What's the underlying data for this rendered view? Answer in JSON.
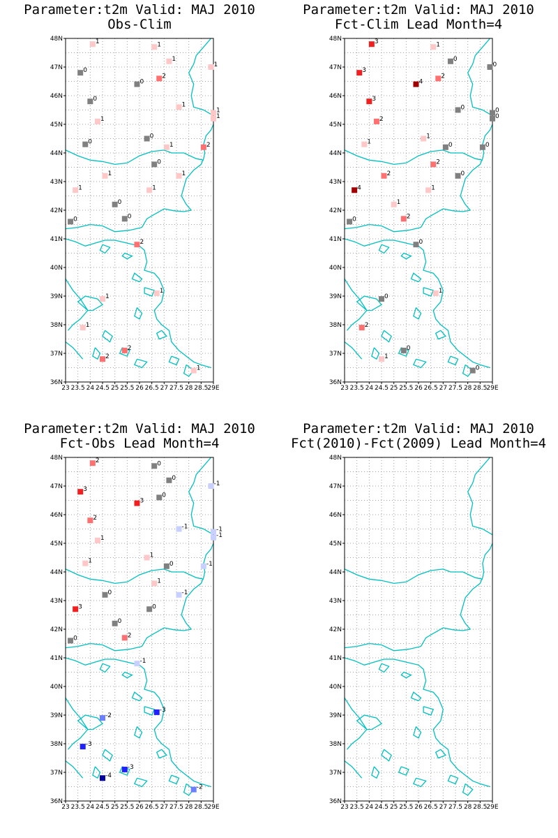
{
  "axes": {
    "lat_labels": [
      "48N",
      "47N",
      "46N",
      "45N",
      "44N",
      "43N",
      "42N",
      "41N",
      "40N",
      "39N",
      "38N",
      "37N",
      "36N"
    ],
    "lon_labels": [
      "23",
      "23.5",
      "24",
      "24.5",
      "25",
      "25.5",
      "26",
      "26.5",
      "27",
      "27.5",
      "28",
      "28.5",
      "29E"
    ],
    "lat_range": [
      36,
      48
    ],
    "lon_range": [
      23,
      29
    ]
  },
  "colors": {
    "coast": "#00c0c0",
    "grid": "#a0a0a0",
    "scale": {
      "-4": "#0000a0",
      "-3": "#2020ff",
      "-2": "#6c80ff",
      "-1": "#c8d0ff",
      "0": "#808080",
      "1": "#ffc8c8",
      "2": "#ff7070",
      "3": "#f02020",
      "4": "#a00000"
    }
  },
  "panels": [
    {
      "title_line1": "Parameter:t2m Valid: MAJ 2010",
      "title_line2": "Obs-Clim",
      "stations": [
        {
          "lon": 24.1,
          "lat": 47.8,
          "v": "1"
        },
        {
          "lon": 26.6,
          "lat": 47.7,
          "v": "1"
        },
        {
          "lon": 27.2,
          "lat": 47.2,
          "v": "1"
        },
        {
          "lon": 28.9,
          "lat": 47.0,
          "v": "1"
        },
        {
          "lon": 23.6,
          "lat": 46.8,
          "v": "0"
        },
        {
          "lon": 26.8,
          "lat": 46.6,
          "v": "2"
        },
        {
          "lon": 25.9,
          "lat": 46.4,
          "v": "0"
        },
        {
          "lon": 24.0,
          "lat": 45.8,
          "v": "0"
        },
        {
          "lon": 27.6,
          "lat": 45.6,
          "v": "1"
        },
        {
          "lon": 29.0,
          "lat": 45.4,
          "v": "1"
        },
        {
          "lon": 29.0,
          "lat": 45.2,
          "v": "1"
        },
        {
          "lon": 24.3,
          "lat": 45.1,
          "v": "1"
        },
        {
          "lon": 26.3,
          "lat": 44.5,
          "v": "0"
        },
        {
          "lon": 23.8,
          "lat": 44.3,
          "v": "0"
        },
        {
          "lon": 27.1,
          "lat": 44.2,
          "v": "1"
        },
        {
          "lon": 28.6,
          "lat": 44.2,
          "v": "2"
        },
        {
          "lon": 26.6,
          "lat": 43.6,
          "v": "0"
        },
        {
          "lon": 24.6,
          "lat": 43.2,
          "v": "1"
        },
        {
          "lon": 27.6,
          "lat": 43.2,
          "v": "1"
        },
        {
          "lon": 23.4,
          "lat": 42.7,
          "v": "1"
        },
        {
          "lon": 26.4,
          "lat": 42.7,
          "v": "1"
        },
        {
          "lon": 25.0,
          "lat": 42.2,
          "v": "0"
        },
        {
          "lon": 25.4,
          "lat": 41.7,
          "v": "0"
        },
        {
          "lon": 23.2,
          "lat": 41.6,
          "v": "0"
        },
        {
          "lon": 25.9,
          "lat": 40.8,
          "v": "2"
        },
        {
          "lon": 24.5,
          "lat": 38.9,
          "v": "1"
        },
        {
          "lon": 26.7,
          "lat": 39.1,
          "v": "1"
        },
        {
          "lon": 23.7,
          "lat": 37.9,
          "v": "1"
        },
        {
          "lon": 25.4,
          "lat": 37.1,
          "v": "2"
        },
        {
          "lon": 24.5,
          "lat": 36.8,
          "v": "2"
        },
        {
          "lon": 28.2,
          "lat": 36.4,
          "v": "1"
        }
      ]
    },
    {
      "title_line1": "Parameter:t2m Valid: MAJ 2010",
      "title_line2": "Fct-Clim Lead Month=4",
      "stations": [
        {
          "lon": 24.1,
          "lat": 47.8,
          "v": "3"
        },
        {
          "lon": 26.6,
          "lat": 47.7,
          "v": "1"
        },
        {
          "lon": 27.3,
          "lat": 47.2,
          "v": "0"
        },
        {
          "lon": 28.9,
          "lat": 47.0,
          "v": "0"
        },
        {
          "lon": 23.6,
          "lat": 46.8,
          "v": "3"
        },
        {
          "lon": 26.8,
          "lat": 46.6,
          "v": "2"
        },
        {
          "lon": 25.9,
          "lat": 46.4,
          "v": "4"
        },
        {
          "lon": 24.0,
          "lat": 45.8,
          "v": "3"
        },
        {
          "lon": 27.6,
          "lat": 45.5,
          "v": "0"
        },
        {
          "lon": 29.0,
          "lat": 45.4,
          "v": "0"
        },
        {
          "lon": 29.0,
          "lat": 45.2,
          "v": "0"
        },
        {
          "lon": 24.3,
          "lat": 45.1,
          "v": "2"
        },
        {
          "lon": 26.2,
          "lat": 44.5,
          "v": "1"
        },
        {
          "lon": 23.8,
          "lat": 44.3,
          "v": "1"
        },
        {
          "lon": 27.1,
          "lat": 44.2,
          "v": "0"
        },
        {
          "lon": 28.6,
          "lat": 44.2,
          "v": "0"
        },
        {
          "lon": 26.6,
          "lat": 43.6,
          "v": "2"
        },
        {
          "lon": 24.6,
          "lat": 43.2,
          "v": "2"
        },
        {
          "lon": 27.6,
          "lat": 43.2,
          "v": "0"
        },
        {
          "lon": 23.4,
          "lat": 42.7,
          "v": "4"
        },
        {
          "lon": 26.4,
          "lat": 42.7,
          "v": "1"
        },
        {
          "lon": 25.0,
          "lat": 42.2,
          "v": "1"
        },
        {
          "lon": 25.4,
          "lat": 41.7,
          "v": "2"
        },
        {
          "lon": 23.2,
          "lat": 41.6,
          "v": "0"
        },
        {
          "lon": 25.9,
          "lat": 40.8,
          "v": "0"
        },
        {
          "lon": 24.5,
          "lat": 38.9,
          "v": "0"
        },
        {
          "lon": 26.7,
          "lat": 39.1,
          "v": "1"
        },
        {
          "lon": 23.7,
          "lat": 37.9,
          "v": "2"
        },
        {
          "lon": 25.4,
          "lat": 37.1,
          "v": "0"
        },
        {
          "lon": 24.5,
          "lat": 36.8,
          "v": "1"
        },
        {
          "lon": 28.2,
          "lat": 36.4,
          "v": "0"
        }
      ]
    },
    {
      "title_line1": "Parameter:t2m Valid: MAJ 2010",
      "title_line2": "Fct-Obs Lead Month=4",
      "stations": [
        {
          "lon": 24.1,
          "lat": 47.8,
          "v": "2"
        },
        {
          "lon": 26.6,
          "lat": 47.7,
          "v": "0"
        },
        {
          "lon": 27.2,
          "lat": 47.2,
          "v": "0"
        },
        {
          "lon": 28.9,
          "lat": 47.0,
          "v": "-1"
        },
        {
          "lon": 23.6,
          "lat": 46.8,
          "v": "3"
        },
        {
          "lon": 26.8,
          "lat": 46.6,
          "v": "0"
        },
        {
          "lon": 25.9,
          "lat": 46.4,
          "v": "3"
        },
        {
          "lon": 24.0,
          "lat": 45.8,
          "v": "2"
        },
        {
          "lon": 27.6,
          "lat": 45.5,
          "v": "-1"
        },
        {
          "lon": 29.0,
          "lat": 45.4,
          "v": "-1"
        },
        {
          "lon": 29.0,
          "lat": 45.2,
          "v": "-1"
        },
        {
          "lon": 24.3,
          "lat": 45.1,
          "v": "1"
        },
        {
          "lon": 26.3,
          "lat": 44.5,
          "v": "1"
        },
        {
          "lon": 23.8,
          "lat": 44.3,
          "v": "1"
        },
        {
          "lon": 27.1,
          "lat": 44.2,
          "v": "0"
        },
        {
          "lon": 28.6,
          "lat": 44.2,
          "v": "-1"
        },
        {
          "lon": 26.6,
          "lat": 43.6,
          "v": "1"
        },
        {
          "lon": 24.6,
          "lat": 43.2,
          "v": "0"
        },
        {
          "lon": 27.6,
          "lat": 43.2,
          "v": "-1"
        },
        {
          "lon": 23.4,
          "lat": 42.7,
          "v": "3"
        },
        {
          "lon": 26.4,
          "lat": 42.7,
          "v": "0"
        },
        {
          "lon": 25.0,
          "lat": 42.2,
          "v": "0"
        },
        {
          "lon": 25.4,
          "lat": 41.7,
          "v": "2"
        },
        {
          "lon": 23.2,
          "lat": 41.6,
          "v": "0"
        },
        {
          "lon": 25.9,
          "lat": 40.8,
          "v": "-1"
        },
        {
          "lon": 24.5,
          "lat": 38.9,
          "v": "-2"
        },
        {
          "lon": 26.7,
          "lat": 39.1,
          "v": "-3"
        },
        {
          "lon": 23.7,
          "lat": 37.9,
          "v": "-3"
        },
        {
          "lon": 25.4,
          "lat": 37.1,
          "v": "-3"
        },
        {
          "lon": 24.5,
          "lat": 36.8,
          "v": "-4"
        },
        {
          "lon": 28.2,
          "lat": 36.4,
          "v": "-2"
        }
      ]
    },
    {
      "title_line1": "Parameter:t2m Valid: MAJ 2010",
      "title_line2": "Fct(2010)-Fct(2009) Lead Month=4",
      "stations": []
    }
  ]
}
